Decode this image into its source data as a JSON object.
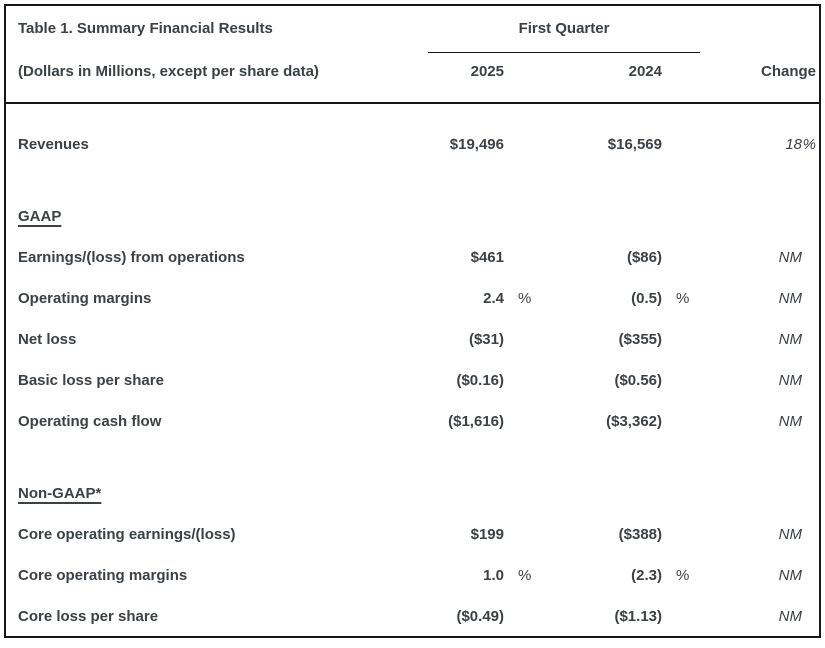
{
  "table": {
    "title": "Table 1. Summary Financial Results",
    "subtitle": "(Dollars in Millions, except per share data)",
    "quarter_label": "First Quarter",
    "columns": {
      "y2025": "2025",
      "y2024": "2024",
      "change": "Change"
    },
    "rows": [
      {
        "type": "data",
        "label": "Revenues",
        "v2025": "$19,496",
        "p2025": "",
        "v2024": "$16,569",
        "p2024": "",
        "change": "18",
        "change_pct": "%"
      },
      {
        "type": "spacer"
      },
      {
        "type": "section",
        "label": "GAAP",
        "v2025": "",
        "p2025": "",
        "v2024": "",
        "p2024": "",
        "change": "",
        "change_pct": ""
      },
      {
        "type": "data",
        "label": "Earnings/(loss) from operations",
        "v2025": "$461",
        "p2025": "",
        "v2024": "($86)",
        "p2024": "",
        "change": "NM",
        "change_pct": ""
      },
      {
        "type": "data",
        "label": "Operating margins",
        "v2025": "2.4",
        "p2025": "%",
        "v2024": "(0.5)",
        "p2024": "%",
        "change": "NM",
        "change_pct": ""
      },
      {
        "type": "data",
        "label": "Net loss",
        "v2025": "($31)",
        "p2025": "",
        "v2024": "($355)",
        "p2024": "",
        "change": "NM",
        "change_pct": ""
      },
      {
        "type": "data",
        "label": "Basic loss per share",
        "v2025": "($0.16)",
        "p2025": "",
        "v2024": "($0.56)",
        "p2024": "",
        "change": "NM",
        "change_pct": ""
      },
      {
        "type": "data",
        "label": "Operating cash flow",
        "v2025": "($1,616)",
        "p2025": "",
        "v2024": "($3,362)",
        "p2024": "",
        "change": "NM",
        "change_pct": ""
      },
      {
        "type": "spacer"
      },
      {
        "type": "section",
        "label": "Non-GAAP*",
        "v2025": "",
        "p2025": "",
        "v2024": "",
        "p2024": "",
        "change": "",
        "change_pct": ""
      },
      {
        "type": "data",
        "label": "Core operating earnings/(loss)",
        "v2025": "$199",
        "p2025": "",
        "v2024": "($388)",
        "p2024": "",
        "change": "NM",
        "change_pct": ""
      },
      {
        "type": "data",
        "label": "Core operating margins",
        "v2025": "1.0",
        "p2025": "%",
        "v2024": "(2.3)",
        "p2024": "%",
        "change": "NM",
        "change_pct": ""
      },
      {
        "type": "data",
        "label": "Core loss per share",
        "v2025": "($0.49)",
        "p2025": "",
        "v2024": "($1.13)",
        "p2024": "",
        "change": "NM",
        "change_pct": ""
      }
    ],
    "colors": {
      "text": "#3c4146",
      "border": "#161616"
    }
  }
}
